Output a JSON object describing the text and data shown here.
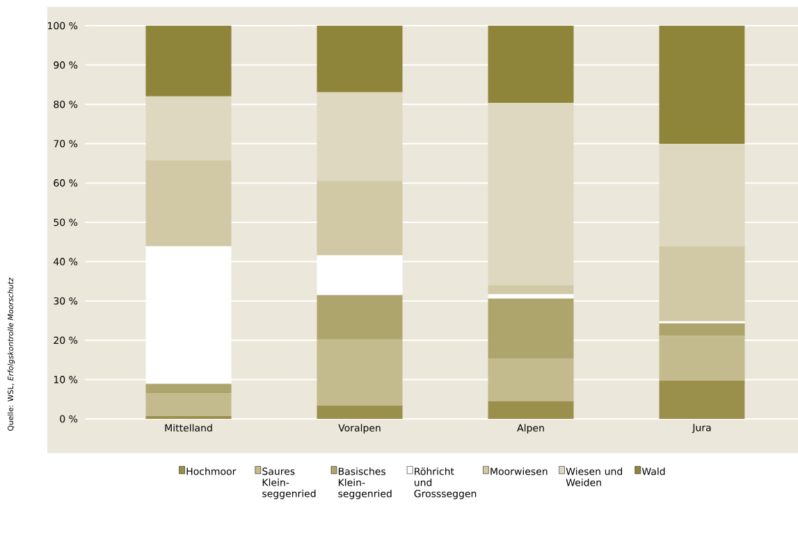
{
  "chart_data": {
    "type": "bar",
    "stacked": true,
    "categories": [
      "Mittelland",
      "Voralpen",
      "Alpen",
      "Jura"
    ],
    "series": [
      {
        "name": "Hochmoor",
        "color": "#9b8f4c",
        "values": [
          0.7,
          3.4,
          4.5,
          9.7
        ]
      },
      {
        "name": "Saures Klein-seggenried",
        "color": "#c3bb8e",
        "values": [
          5.8,
          16.8,
          10.8,
          11.4
        ]
      },
      {
        "name": "Basisches Klein-seggenried",
        "color": "#aea56c",
        "values": [
          2.4,
          11.3,
          15.3,
          3.2
        ]
      },
      {
        "name": "Röhricht und Grossseggen",
        "color": "#ffffff",
        "values": [
          35.0,
          10.1,
          1.1,
          0.5
        ]
      },
      {
        "name": "Moorwiesen",
        "color": "#d1c9a5",
        "values": [
          21.9,
          18.9,
          2.3,
          19.1
        ]
      },
      {
        "name": "Wiesen und Weiden",
        "color": "#ddd8bf",
        "values": [
          16.2,
          22.6,
          46.4,
          26.0
        ]
      },
      {
        "name": "Wald",
        "color": "#8e853a",
        "values": [
          18.0,
          16.9,
          19.6,
          30.1
        ]
      }
    ],
    "ylim": [
      0,
      100
    ],
    "yticks": [
      {
        "value": 0,
        "label": "0 %"
      },
      {
        "value": 10,
        "label": "10 %"
      },
      {
        "value": 20,
        "label": "20 %"
      },
      {
        "value": 30,
        "label": "30 %"
      },
      {
        "value": 40,
        "label": "40 %"
      },
      {
        "value": 50,
        "label": "50 %"
      },
      {
        "value": 60,
        "label": "60 %"
      },
      {
        "value": 70,
        "label": "70 %"
      },
      {
        "value": 80,
        "label": "80 %"
      },
      {
        "value": 90,
        "label": "90 %"
      },
      {
        "value": 100,
        "label": "100 %"
      }
    ],
    "grid": "y",
    "legend": "bottom",
    "annotations": [
      "Quelle: WSL, *Erfolgskontrolle Moorschutz*"
    ]
  }
}
